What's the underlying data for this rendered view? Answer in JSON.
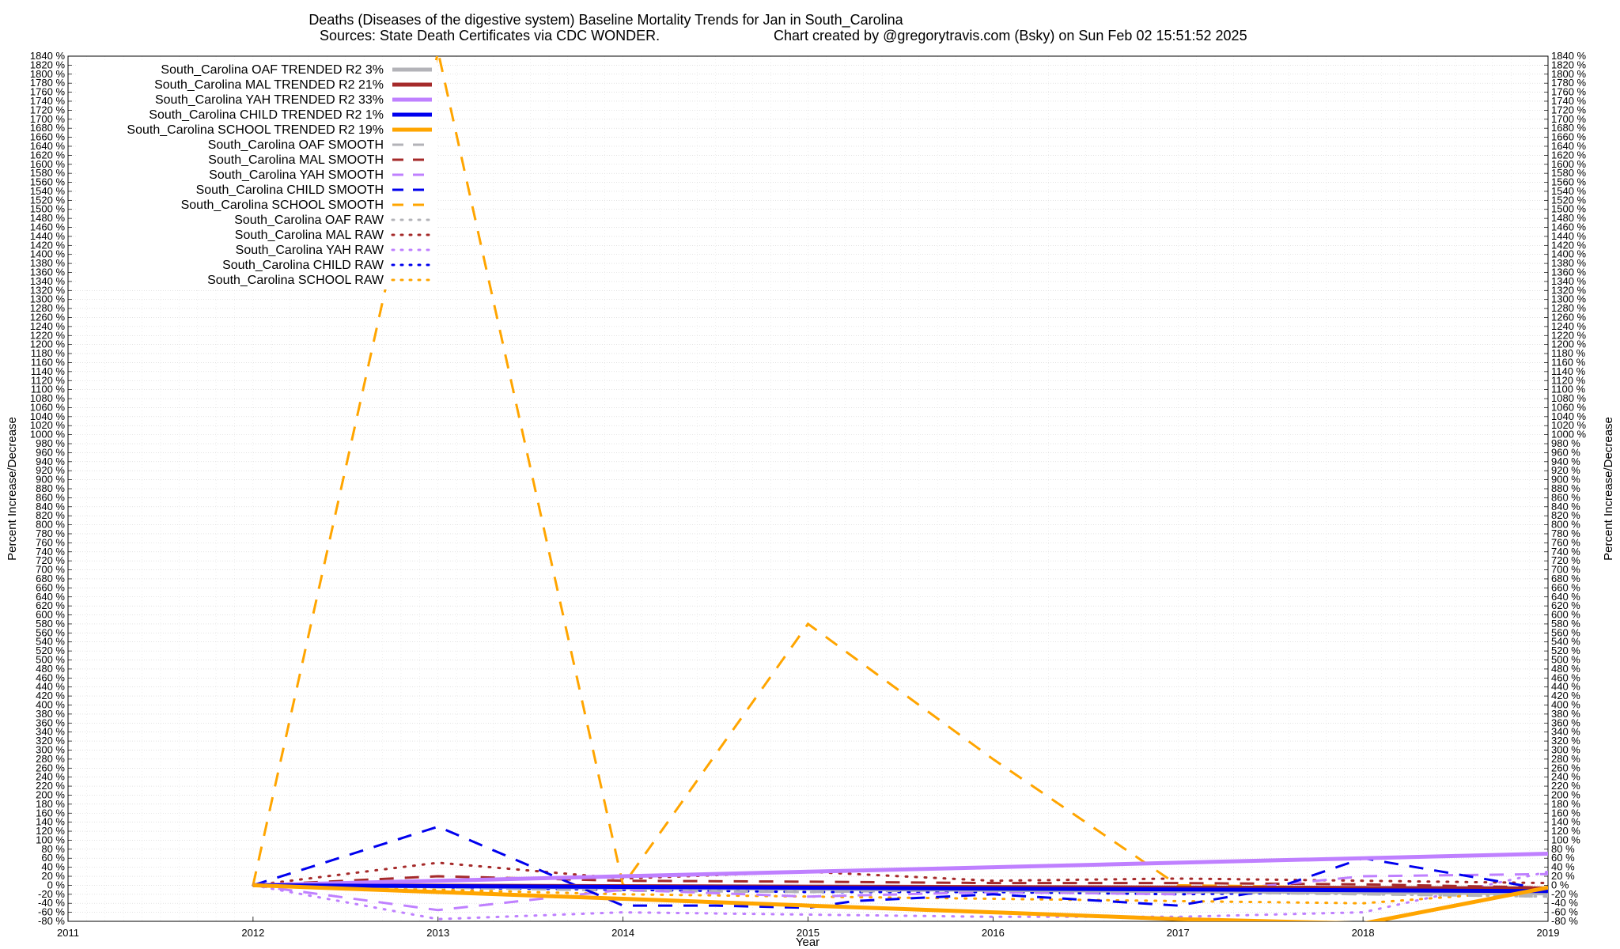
{
  "chart_data": {
    "type": "line",
    "title_line1": "Deaths (Diseases of the digestive system)  Baseline Mortality Trends for Jan in South_Carolina",
    "title_line2_left": "Sources: State Death Certificates via CDC WONDER.",
    "title_line2_right": "Chart created by @gregorytravis.com (Bsky) on Sun Feb 02 15:51:52 2025",
    "xlabel": "Year",
    "ylabel_left": "Percent Increase/Decrease",
    "ylabel_right": "Percent Increase/Decrease",
    "xlim": [
      2011,
      2019
    ],
    "ylim": [
      -80,
      1840
    ],
    "ytick_step": 20,
    "ytick_suffix": " %",
    "x_ticks": [
      "2011",
      "2012",
      "2013",
      "2014",
      "2015",
      "2016",
      "2017",
      "2018",
      "2019"
    ],
    "grid": true,
    "legend_position": "top-left",
    "colors": {
      "OAF": "#b3b3b8",
      "MAL": "#a52a2a",
      "YAH": "#bf80ff",
      "CHILD": "#0000ee",
      "SCHOOL": "#ffa500"
    },
    "series": [
      {
        "name": "South_Carolina OAF TRENDED R2  3%",
        "group": "OAF",
        "style": "trend",
        "x": [
          2012,
          2019
        ],
        "values": [
          0,
          -18
        ]
      },
      {
        "name": "South_Carolina MAL TRENDED R2  21%",
        "group": "MAL",
        "style": "trend",
        "x": [
          2012,
          2019
        ],
        "values": [
          0,
          -7
        ]
      },
      {
        "name": "South_Carolina YAH TRENDED R2  33%",
        "group": "YAH",
        "style": "trend",
        "x": [
          2012,
          2019
        ],
        "values": [
          0,
          70
        ]
      },
      {
        "name": "South_Carolina CHILD TRENDED R2  1%",
        "group": "CHILD",
        "style": "trend",
        "x": [
          2012,
          2019
        ],
        "values": [
          0,
          -13
        ]
      },
      {
        "name": "South_Carolina SCHOOL TRENDED R2  19%",
        "group": "SCHOOL",
        "style": "trend",
        "x": [
          2012,
          2013,
          2014,
          2015,
          2016,
          2017,
          2018,
          2019
        ],
        "values": [
          0,
          -15,
          -30,
          -45,
          -60,
          -75,
          -85,
          -5
        ]
      },
      {
        "name": "South_Carolina OAF SMOOTH",
        "group": "OAF",
        "style": "smooth",
        "x": [
          2012,
          2013,
          2014,
          2015,
          2016,
          2017,
          2018,
          2019
        ],
        "values": [
          0,
          -5,
          -12,
          -15,
          -10,
          -15,
          -20,
          -25
        ]
      },
      {
        "name": "South_Carolina MAL SMOOTH",
        "group": "MAL",
        "style": "smooth",
        "x": [
          2012,
          2013,
          2014,
          2015,
          2016,
          2017,
          2018,
          2019
        ],
        "values": [
          0,
          20,
          10,
          8,
          5,
          5,
          2,
          -5
        ]
      },
      {
        "name": "South_Carolina YAH SMOOTH",
        "group": "YAH",
        "style": "smooth",
        "x": [
          2012,
          2013,
          2014,
          2015,
          2016,
          2017,
          2018,
          2019
        ],
        "values": [
          0,
          -55,
          -10,
          -25,
          -15,
          -20,
          20,
          25
        ]
      },
      {
        "name": "South_Carolina CHILD SMOOTH",
        "group": "CHILD",
        "style": "smooth",
        "x": [
          2012,
          2013,
          2014,
          2014.5,
          2015,
          2015.25,
          2016,
          2016.8,
          2017,
          2017.5,
          2018,
          2019
        ],
        "values": [
          0,
          130,
          -45,
          -45,
          -50,
          -35,
          -20,
          -40,
          -45,
          -10,
          60,
          -10
        ]
      },
      {
        "name": "South_Carolina SCHOOL SMOOTH",
        "group": "SCHOOL",
        "style": "smooth",
        "x": [
          2012,
          2013,
          2014,
          2015,
          2016,
          2017,
          2018,
          2019
        ],
        "values": [
          0,
          1850,
          0,
          580,
          280,
          0,
          -5,
          -10
        ]
      },
      {
        "name": "South_Carolina OAF RAW",
        "group": "OAF",
        "style": "raw",
        "x": [
          2012,
          2013,
          2014,
          2015,
          2016,
          2017,
          2018,
          2019
        ],
        "values": [
          0,
          -5,
          -10,
          -12,
          -15,
          -15,
          -20,
          -25
        ]
      },
      {
        "name": "South_Carolina MAL RAW",
        "group": "MAL",
        "style": "raw",
        "x": [
          2012,
          2013,
          2014,
          2015,
          2016,
          2017,
          2018,
          2019
        ],
        "values": [
          0,
          50,
          15,
          30,
          10,
          15,
          10,
          5
        ]
      },
      {
        "name": "South_Carolina YAH RAW",
        "group": "YAH",
        "style": "raw",
        "x": [
          2012,
          2013,
          2014,
          2015,
          2016,
          2017,
          2018,
          2019
        ],
        "values": [
          0,
          -75,
          -60,
          -65,
          -70,
          -70,
          -60,
          30
        ]
      },
      {
        "name": "South_Carolina CHILD RAW",
        "group": "CHILD",
        "style": "raw",
        "x": [
          2012,
          2013,
          2014,
          2015,
          2016,
          2017,
          2018,
          2019
        ],
        "values": [
          0,
          -5,
          -10,
          -15,
          -15,
          -20,
          -15,
          -10
        ]
      },
      {
        "name": "South_Carolina SCHOOL RAW",
        "group": "SCHOOL",
        "style": "raw",
        "x": [
          2012,
          2013,
          2014,
          2015,
          2016,
          2017,
          2018,
          2019
        ],
        "values": [
          0,
          -10,
          -20,
          -25,
          -30,
          -35,
          -40,
          -10
        ]
      }
    ]
  }
}
